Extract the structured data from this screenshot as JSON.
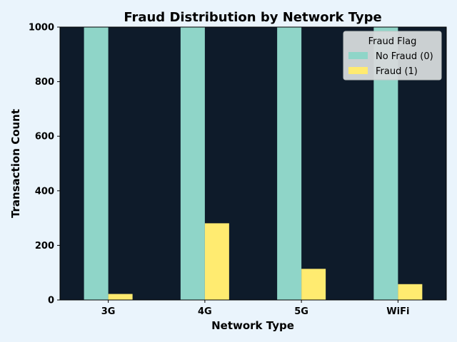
{
  "colors": {
    "page_background": "#eaf4fc",
    "plot_background": "#0e1b2a",
    "no_fraud": "#8fd5c8",
    "fraud": "#ffeb70",
    "axis_text": "#000000"
  },
  "chart_data": {
    "type": "bar",
    "title": "Fraud Distribution by Network Type",
    "xlabel": "Network Type",
    "ylabel": "Transaction Count",
    "categories": [
      "3G",
      "4G",
      "5G",
      "WiFi"
    ],
    "ylim": [
      0,
      1000
    ],
    "yticks": [
      0,
      200,
      400,
      600,
      800,
      1000
    ],
    "grid": false,
    "legend": {
      "title": "Fraud Flag",
      "placement": "top-right"
    },
    "series": [
      {
        "name": "No Fraud (0)",
        "color_key": "no_fraud",
        "values": [
          1000,
          1000,
          1000,
          1000
        ]
      },
      {
        "name": "Fraud (1)",
        "color_key": "fraud",
        "values": [
          22,
          281,
          114,
          58
        ]
      }
    ]
  }
}
